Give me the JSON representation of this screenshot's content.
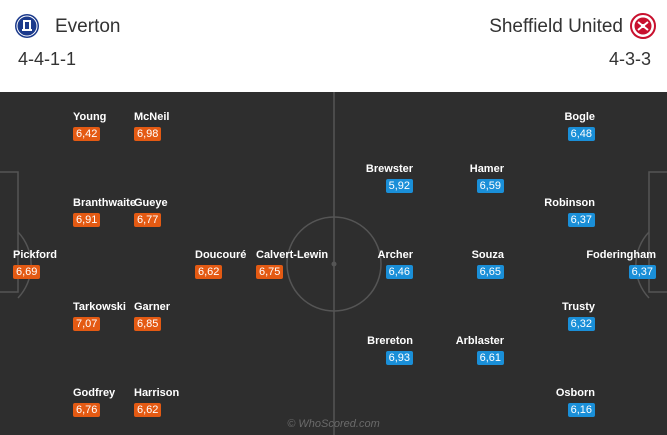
{
  "home": {
    "name": "Everton",
    "formation": "4-4-1-1",
    "crest_icon": "everton-crest-icon",
    "rating_color": "#e45a13",
    "players": [
      {
        "name": "Young",
        "rating": "6,42"
      },
      {
        "name": "McNeil",
        "rating": "6,98"
      },
      {
        "name": "Branthwaite",
        "rating": "6,91"
      },
      {
        "name": "Gueye",
        "rating": "6,77"
      },
      {
        "name": "Pickford",
        "rating": "6,69"
      },
      {
        "name": "Doucouré",
        "rating": "6,62"
      },
      {
        "name": "Calvert-Lewin",
        "rating": "6,75"
      },
      {
        "name": "Tarkowski",
        "rating": "7,07"
      },
      {
        "name": "Garner",
        "rating": "6,85"
      },
      {
        "name": "Godfrey",
        "rating": "6,76"
      },
      {
        "name": "Harrison",
        "rating": "6,62"
      }
    ]
  },
  "away": {
    "name": "Sheffield United",
    "formation": "4-3-3",
    "crest_icon": "sheffield-united-crest-icon",
    "rating_color": "#1a8fd8",
    "players": [
      {
        "name": "Bogle",
        "rating": "6,48"
      },
      {
        "name": "Brewster",
        "rating": "5,92"
      },
      {
        "name": "Hamer",
        "rating": "6,59"
      },
      {
        "name": "Robinson",
        "rating": "6,37"
      },
      {
        "name": "Archer",
        "rating": "6,46"
      },
      {
        "name": "Souza",
        "rating": "6,65"
      },
      {
        "name": "Foderingham",
        "rating": "6,37"
      },
      {
        "name": "Trusty",
        "rating": "6,32"
      },
      {
        "name": "Brereton",
        "rating": "6,93"
      },
      {
        "name": "Arblaster",
        "rating": "6,61"
      },
      {
        "name": "Osborn",
        "rating": "6,16"
      }
    ]
  },
  "pitch_color": "#2e2e2e",
  "watermark": "© WhoScored.com"
}
